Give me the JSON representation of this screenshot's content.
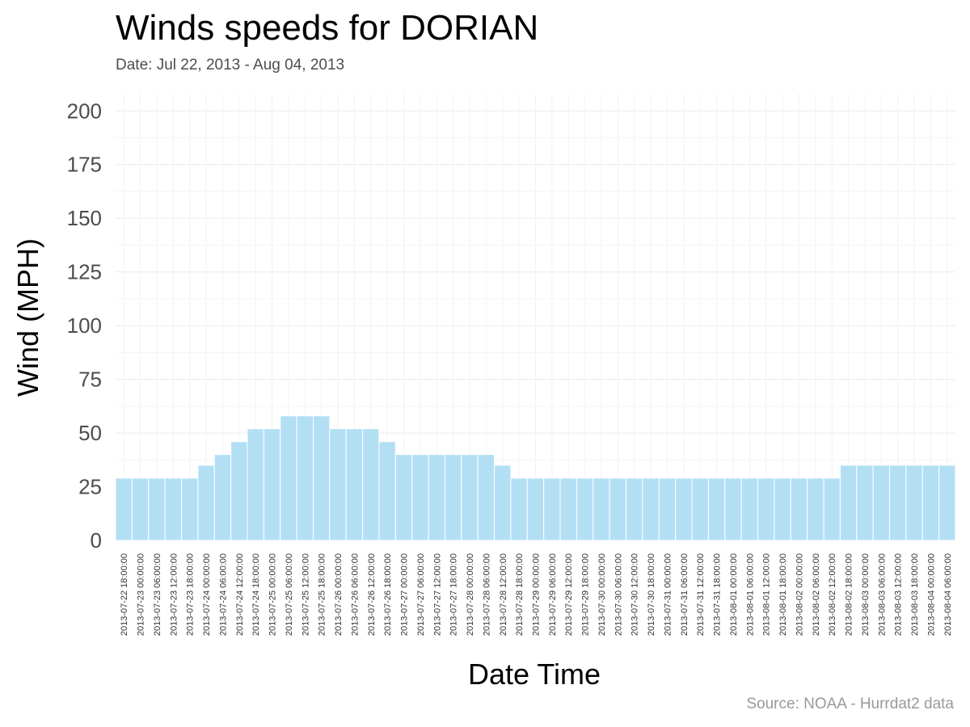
{
  "chart_data": {
    "type": "bar",
    "title": "Winds speeds for DORIAN",
    "subtitle": "Date:  Jul 22, 2013 - Aug 04, 2013",
    "xlabel": "Date Time",
    "ylabel": "Wind (MPH)",
    "caption": "Source: NOAA - Hurrdat2 data",
    "ylim": [
      0,
      208
    ],
    "yticks": [
      0,
      25,
      50,
      75,
      100,
      125,
      150,
      175,
      200
    ],
    "grid": true,
    "bar_color": "#b3dff5",
    "categories": [
      "2013-07-22 18:00:00",
      "2013-07-23 00:00:00",
      "2013-07-23 06:00:00",
      "2013-07-23 12:00:00",
      "2013-07-23 18:00:00",
      "2013-07-24 00:00:00",
      "2013-07-24 06:00:00",
      "2013-07-24 12:00:00",
      "2013-07-24 18:00:00",
      "2013-07-25 00:00:00",
      "2013-07-25 06:00:00",
      "2013-07-25 12:00:00",
      "2013-07-25 18:00:00",
      "2013-07-26 00:00:00",
      "2013-07-26 06:00:00",
      "2013-07-26 12:00:00",
      "2013-07-26 18:00:00",
      "2013-07-27 00:00:00",
      "2013-07-27 06:00:00",
      "2013-07-27 12:00:00",
      "2013-07-27 18:00:00",
      "2013-07-28 00:00:00",
      "2013-07-28 06:00:00",
      "2013-07-28 12:00:00",
      "2013-07-28 18:00:00",
      "2013-07-29 00:00:00",
      "2013-07-29 06:00:00",
      "2013-07-29 12:00:00",
      "2013-07-29 18:00:00",
      "2013-07-30 00:00:00",
      "2013-07-30 06:00:00",
      "2013-07-30 12:00:00",
      "2013-07-30 18:00:00",
      "2013-07-31 00:00:00",
      "2013-07-31 06:00:00",
      "2013-07-31 12:00:00",
      "2013-07-31 18:00:00",
      "2013-08-01 00:00:00",
      "2013-08-01 06:00:00",
      "2013-08-01 12:00:00",
      "2013-08-01 18:00:00",
      "2013-08-02 00:00:00",
      "2013-08-02 06:00:00",
      "2013-08-02 12:00:00",
      "2013-08-02 18:00:00",
      "2013-08-03 00:00:00",
      "2013-08-03 06:00:00",
      "2013-08-03 12:00:00",
      "2013-08-03 18:00:00",
      "2013-08-04 00:00:00",
      "2013-08-04 06:00:00"
    ],
    "values": [
      29,
      29,
      29,
      29,
      29,
      35,
      40,
      46,
      52,
      52,
      58,
      58,
      58,
      52,
      52,
      52,
      46,
      40,
      40,
      40,
      40,
      40,
      40,
      35,
      29,
      29,
      29,
      29,
      29,
      29,
      29,
      29,
      29,
      29,
      29,
      29,
      29,
      29,
      29,
      29,
      29,
      29,
      29,
      29,
      35,
      35,
      35,
      35,
      35,
      35,
      35
    ]
  }
}
